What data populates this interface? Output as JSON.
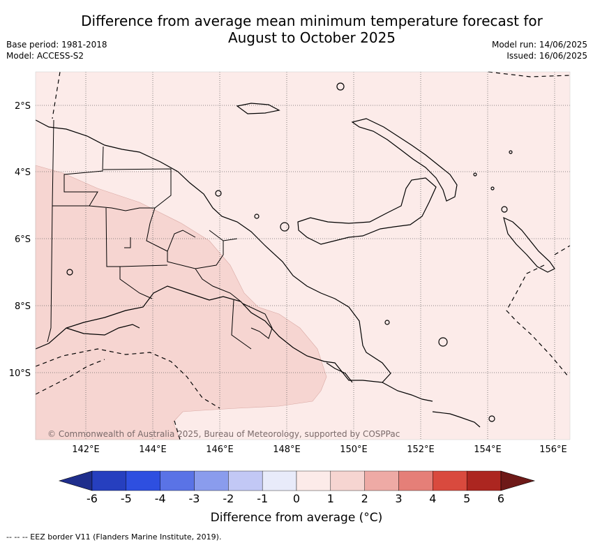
{
  "title_line1": "Difference from average mean minimum temperature forecast for",
  "title_line2": "August to October 2025",
  "base_period": "Base period: 1981-2018",
  "model": "Model: ACCESS-S2",
  "model_run": "Model run: 14/06/2025",
  "issued": "Issued: 16/06/2025",
  "lat_labels": [
    "2°S",
    "4°S",
    "6°S",
    "8°S",
    "10°S"
  ],
  "lon_labels": [
    "142°E",
    "144°E",
    "146°E",
    "148°E",
    "150°E",
    "152°E",
    "154°E",
    "156°E"
  ],
  "copyright": "© Commonwealth of Australia 2025, Bureau of Meteorology, supported by COSPPac",
  "colorbar": {
    "ticks": [
      "-6",
      "-5",
      "-4",
      "-3",
      "-2",
      "-1",
      "0",
      "1",
      "2",
      "3",
      "4",
      "5",
      "6"
    ],
    "colors": [
      "#1f2e8c",
      "#263fbf",
      "#2e4fe0",
      "#5a73e6",
      "#8a9ced",
      "#c2c8f5",
      "#e8ebfa",
      "#fcebe9",
      "#f6d5d1",
      "#eeaaa5",
      "#e57f78",
      "#d94a3e",
      "#ac2620",
      "#6e1a18"
    ],
    "label": "Difference from average (°C)"
  },
  "footnote": "--  --  -- EEZ border V11 (Flanders Marine Institute, 2019).",
  "map_data": {
    "region": "Papua New Guinea",
    "lon_range": [
      140.5,
      156.5
    ],
    "lat_range": [
      -12,
      -1
    ],
    "dominant_category": "0 to 1",
    "secondary_category_southwest": "1 to 2"
  }
}
